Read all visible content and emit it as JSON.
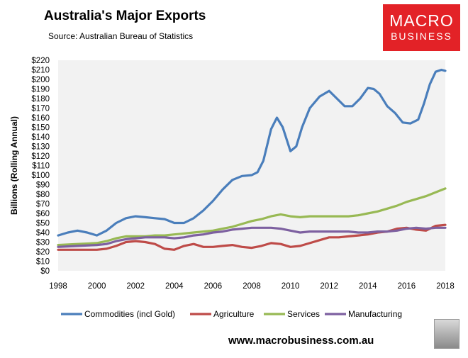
{
  "header": {
    "title": "Australia's Major Exports",
    "subtitle": "Source: Australian Bureau of Statistics"
  },
  "logo": {
    "line1": "MACRO",
    "line2": "BUSINESS"
  },
  "footer": {
    "url": "www.macrobusiness.com.au"
  },
  "colors": {
    "plot_bg": "#f2f2f2",
    "commodities": "#4a7ebb",
    "agriculture": "#be4b48",
    "services": "#98b954",
    "manufacturing": "#7d60a0",
    "brand": "#e32227"
  },
  "chart_data": {
    "type": "line",
    "title": "Australia's Major Exports",
    "xlabel": "",
    "ylabel": "Billions (Rolling Annual)",
    "xlim": [
      1998,
      2018
    ],
    "ylim": [
      0,
      220
    ],
    "x_ticks": [
      1998,
      2000,
      2002,
      2004,
      2006,
      2008,
      2010,
      2012,
      2014,
      2016,
      2018
    ],
    "y_ticks": [
      "$0",
      "$10",
      "$20",
      "$30",
      "$40",
      "$50",
      "$60",
      "$70",
      "$80",
      "$90",
      "$100",
      "$110",
      "$120",
      "$130",
      "$140",
      "$150",
      "$160",
      "$170",
      "$180",
      "$190",
      "$200",
      "$210",
      "$220"
    ],
    "grid": false,
    "legend_position": "bottom",
    "series": [
      {
        "name": "Commodities (incl Gold)",
        "x": [
          1998,
          1998.5,
          1999,
          1999.5,
          2000,
          2000.5,
          2001,
          2001.5,
          2002,
          2002.5,
          2003,
          2003.5,
          2004,
          2004.5,
          2005,
          2005.5,
          2006,
          2006.5,
          2007,
          2007.5,
          2008,
          2008.3,
          2008.6,
          2009,
          2009.3,
          2009.6,
          2010,
          2010.3,
          2010.6,
          2011,
          2011.5,
          2012,
          2012.4,
          2012.8,
          2013.2,
          2013.6,
          2014,
          2014.3,
          2014.6,
          2015,
          2015.4,
          2015.8,
          2016.2,
          2016.6,
          2016.9,
          2017.2,
          2017.5,
          2017.8,
          2018
        ],
        "values": [
          37,
          40,
          42,
          40,
          37,
          42,
          50,
          55,
          57,
          56,
          55,
          54,
          50,
          50,
          55,
          63,
          73,
          85,
          95,
          99,
          100,
          103,
          115,
          148,
          160,
          150,
          125,
          130,
          150,
          170,
          182,
          188,
          180,
          172,
          172,
          180,
          191,
          190,
          185,
          172,
          165,
          155,
          154,
          158,
          175,
          195,
          208,
          210,
          209
        ]
      },
      {
        "name": "Agriculture",
        "x": [
          1998,
          1999,
          2000,
          2000.5,
          2001,
          2001.5,
          2002,
          2002.5,
          2003,
          2003.5,
          2004,
          2004.5,
          2005,
          2005.5,
          2006,
          2006.5,
          2007,
          2007.5,
          2008,
          2008.5,
          2009,
          2009.5,
          2010,
          2010.5,
          2011,
          2011.5,
          2012,
          2012.5,
          2013,
          2013.5,
          2014,
          2014.5,
          2015,
          2015.5,
          2016,
          2016.5,
          2017,
          2017.5,
          2018
        ],
        "values": [
          22,
          22,
          22,
          23,
          26,
          30,
          31,
          30,
          28,
          23,
          22,
          26,
          28,
          25,
          25,
          26,
          27,
          25,
          24,
          26,
          29,
          28,
          25,
          26,
          29,
          32,
          35,
          35,
          36,
          37,
          38,
          40,
          41,
          44,
          45,
          43,
          42,
          47,
          48
        ]
      },
      {
        "name": "Services",
        "x": [
          1998,
          1999,
          2000,
          2000.5,
          2001,
          2001.5,
          2002,
          2002.5,
          2003,
          2003.5,
          2004,
          2004.5,
          2005,
          2005.5,
          2006,
          2006.5,
          2007,
          2007.5,
          2008,
          2008.5,
          2009,
          2009.5,
          2010,
          2010.5,
          2011,
          2011.5,
          2012,
          2012.5,
          2013,
          2013.5,
          2014,
          2014.5,
          2015,
          2015.5,
          2016,
          2016.5,
          2017,
          2017.5,
          2018
        ],
        "values": [
          27,
          28,
          29,
          31,
          34,
          36,
          36,
          36,
          37,
          37,
          38,
          39,
          40,
          41,
          42,
          44,
          46,
          49,
          52,
          54,
          57,
          59,
          57,
          56,
          57,
          57,
          57,
          57,
          57,
          58,
          60,
          62,
          65,
          68,
          72,
          75,
          78,
          82,
          86
        ]
      },
      {
        "name": "Manufacturing",
        "x": [
          1998,
          1999,
          2000,
          2000.5,
          2001,
          2001.5,
          2002,
          2002.5,
          2003,
          2003.5,
          2004,
          2004.5,
          2005,
          2005.5,
          2006,
          2006.5,
          2007,
          2007.5,
          2008,
          2008.5,
          2009,
          2009.5,
          2010,
          2010.5,
          2011,
          2011.5,
          2012,
          2012.5,
          2013,
          2013.5,
          2014,
          2014.5,
          2015,
          2015.5,
          2016,
          2016.5,
          2017,
          2017.5,
          2018
        ],
        "values": [
          25,
          26,
          27,
          28,
          31,
          33,
          34,
          35,
          35,
          35,
          34,
          35,
          37,
          38,
          40,
          41,
          43,
          44,
          45,
          45,
          45,
          44,
          42,
          40,
          41,
          41,
          41,
          41,
          41,
          40,
          40,
          41,
          41,
          42,
          44,
          45,
          44,
          45,
          45
        ]
      }
    ]
  }
}
